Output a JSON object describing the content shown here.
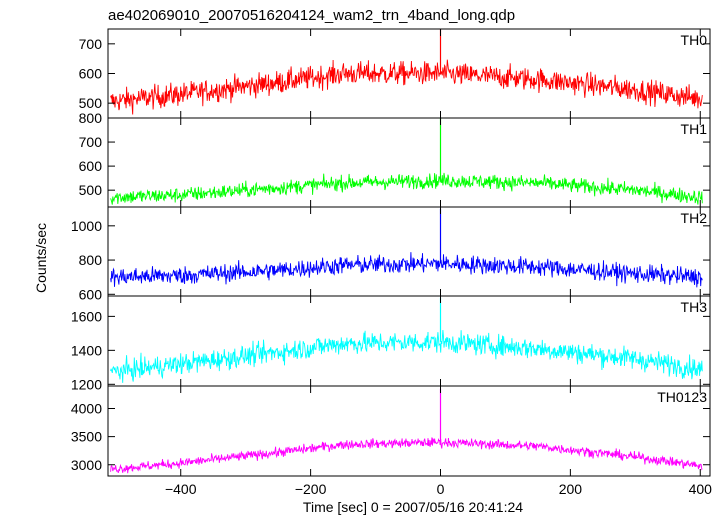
{
  "chart_data": {
    "type": "line",
    "title": "ae402069010_20070516204124_wam2_trn_4band_long.qdp",
    "xlabel": "Time [sec] 0 = 2007/05/16 20:41:24",
    "ylabel": "Counts/sec",
    "xlim": [
      -512,
      415
    ],
    "x_ticks": [
      -400,
      -200,
      0,
      200,
      400
    ],
    "x_tick_labels": [
      "−400",
      "−200",
      "0",
      "200",
      "400"
    ],
    "panels": [
      {
        "name": "TH0",
        "color": "#ff0000",
        "ylim": [
          450,
          750
        ],
        "y_ticks": [
          500,
          600,
          700
        ],
        "y_tick_labels": [
          "500",
          "600",
          "700"
        ],
        "extra_tick_label": "800",
        "trend": [
          [
            -510,
            505
          ],
          [
            -400,
            530
          ],
          [
            -250,
            570
          ],
          [
            -150,
            600
          ],
          [
            0,
            600
          ],
          [
            150,
            580
          ],
          [
            300,
            545
          ],
          [
            400,
            515
          ]
        ],
        "noise": 28,
        "spike": {
          "x": 0,
          "y": 760
        }
      },
      {
        "name": "TH1",
        "color": "#00ff00",
        "ylim": [
          430,
          800
        ],
        "y_ticks": [
          500,
          600,
          700
        ],
        "y_tick_labels": [
          "500",
          "600",
          "700"
        ],
        "trend": [
          [
            -510,
            470
          ],
          [
            -400,
            480
          ],
          [
            -250,
            510
          ],
          [
            -150,
            530
          ],
          [
            0,
            540
          ],
          [
            150,
            530
          ],
          [
            300,
            500
          ],
          [
            400,
            470
          ]
        ],
        "noise": 22,
        "spike": {
          "x": 0,
          "y": 800
        }
      },
      {
        "name": "TH2",
        "color": "#0000ff",
        "ylim": [
          590,
          1110
        ],
        "y_ticks": [
          600,
          800,
          1000
        ],
        "y_tick_labels": [
          "600",
          "800",
          "1000"
        ],
        "trend": [
          [
            -510,
            700
          ],
          [
            -400,
            710
          ],
          [
            -250,
            740
          ],
          [
            -150,
            770
          ],
          [
            0,
            780
          ],
          [
            150,
            760
          ],
          [
            300,
            720
          ],
          [
            400,
            700
          ]
        ],
        "noise": 38,
        "spike": {
          "x": 0,
          "y": 1100
        }
      },
      {
        "name": "TH3",
        "color": "#00ffff",
        "ylim": [
          1190,
          1720
        ],
        "y_ticks": [
          1200,
          1400,
          1600
        ],
        "y_tick_labels": [
          "1200",
          "1400",
          "1600"
        ],
        "trend": [
          [
            -510,
            1270
          ],
          [
            -400,
            1320
          ],
          [
            -250,
            1390
          ],
          [
            -150,
            1440
          ],
          [
            0,
            1450
          ],
          [
            150,
            1410
          ],
          [
            300,
            1350
          ],
          [
            400,
            1290
          ]
        ],
        "noise": 45,
        "spike": {
          "x": 0,
          "y": 1710
        }
      },
      {
        "name": "TH0123",
        "color": "#ff00ff",
        "ylim": [
          2800,
          4400
        ],
        "y_ticks": [
          3000,
          3500,
          4000
        ],
        "y_tick_labels": [
          "3000",
          "3500",
          "4000"
        ],
        "trend": [
          [
            -510,
            2920
          ],
          [
            -400,
            3030
          ],
          [
            -250,
            3220
          ],
          [
            -150,
            3360
          ],
          [
            0,
            3400
          ],
          [
            150,
            3330
          ],
          [
            300,
            3140
          ],
          [
            400,
            2980
          ]
        ],
        "noise": 60,
        "spike": {
          "x": 0,
          "y": 4350
        }
      }
    ],
    "grid": false,
    "legend": "panel labels at top-right of each panel"
  }
}
